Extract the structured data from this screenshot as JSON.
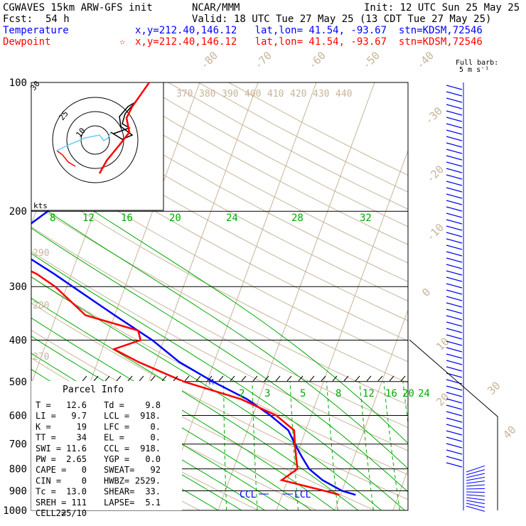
{
  "header": {
    "model": "CGWAVES 15km ARW-GFS init",
    "org": "NCAR/MMM",
    "init": "Init: 12 UTC Sun 25 May 25",
    "fcst_label": "Fcst:",
    "fcst_value": "54 h",
    "valid": "Valid: 18 UTC Tue 27 May 25 (13 CDT Tue 27 May 25)",
    "temp_label": "Temperature",
    "temp_loc": "x,y=212.40,146.12   lat,lon= 41.54, -93.67  stn=KDSM,72546",
    "dew_label": "Dewpoint",
    "dew_star": "☆",
    "dew_loc": "x,y=212.40,146.12   lat,lon= 41.54, -93.67  stn=KDSM,72546",
    "barb_note_1": "Full barb:",
    "barb_note_2": "5 m s⁻¹"
  },
  "hodograph": {
    "units_label": "kts",
    "ring_labels": [
      "10",
      "25",
      "30"
    ]
  },
  "colors": {
    "temperature": "#0000ff",
    "dewpoint": "#ff0000",
    "mixing_ratio": "#00aa00",
    "adiabat": "#c8b49a",
    "isobar": "#000000"
  },
  "parcel_info": {
    "title": "Parcel Info",
    "rows": [
      [
        "T  =",
        "12.6",
        "Td =",
        "9.8"
      ],
      [
        "LI =",
        "9.7",
        "LCL =",
        "918."
      ],
      [
        "K  =",
        "19",
        "LFC =",
        "0."
      ],
      [
        "TT =",
        "34",
        "EL  =",
        "0."
      ],
      [
        "SWI =",
        "11.6",
        "CCL =",
        "918."
      ],
      [
        "PW =",
        "2.65",
        "YGP =",
        "0.0"
      ],
      [
        "CAPE =",
        "0",
        "SWEAT=",
        "92"
      ],
      [
        "CIN =",
        "0",
        "HWBZ=",
        "2529."
      ],
      [
        "Tc =",
        "13.0",
        "SHEAR=",
        "33."
      ],
      [
        "SREH =",
        "111",
        "LAPSE=",
        "5.1"
      ],
      [
        "CELL =",
        "225/10",
        "",
        ""
      ]
    ]
  },
  "level_markers": {
    "ccl": "CCL",
    "lcl": "LCL",
    "m": "M"
  },
  "chart_data": {
    "type": "line",
    "title": "CGWAVES 15km ARW-GFS init",
    "xlabel": "",
    "ylabel": "",
    "pressure_ticks": [
      100,
      200,
      300,
      400,
      500,
      600,
      700,
      800,
      900,
      1000
    ],
    "isotherm_labels_top": [
      "-80",
      "-70",
      "-60",
      "-50",
      "-40"
    ],
    "isotherm_labels_right": [
      "-30",
      "-20",
      "-10",
      "0",
      "10",
      "20",
      "30",
      "40"
    ],
    "theta_labels": [
      "370",
      "380",
      "390",
      "400",
      "410",
      "420",
      "430",
      "440"
    ],
    "theta_labels_left": [
      "290",
      "280",
      "270"
    ],
    "mixing_ratio_labels_upper": [
      "8",
      "12",
      "16",
      "20",
      "24",
      "28",
      "32"
    ],
    "mixing_ratio_labels_lower": [
      "2",
      "3",
      "5",
      "8",
      "12",
      "16",
      "20",
      "24"
    ],
    "series": [
      {
        "name": "Temperature",
        "color": "#0000ff",
        "points": [
          [
            100,
            -56
          ],
          [
            120,
            -57
          ],
          [
            150,
            -57
          ],
          [
            180,
            -56
          ],
          [
            200,
            -58
          ],
          [
            220,
            -61
          ],
          [
            250,
            -60
          ],
          [
            280,
            -53
          ],
          [
            300,
            -49
          ],
          [
            350,
            -40
          ],
          [
            400,
            -32
          ],
          [
            450,
            -26
          ],
          [
            500,
            -19
          ],
          [
            550,
            -12
          ],
          [
            600,
            -7
          ],
          [
            650,
            -3
          ],
          [
            700,
            -1
          ],
          [
            750,
            1
          ],
          [
            800,
            3
          ],
          [
            850,
            6
          ],
          [
            900,
            10
          ],
          [
            920,
            12.6
          ]
        ]
      },
      {
        "name": "Dewpoint",
        "color": "#ff0000",
        "points": [
          [
            100,
            -73
          ],
          [
            120,
            -76
          ],
          [
            150,
            -74
          ],
          [
            180,
            -78
          ],
          [
            200,
            -74
          ],
          [
            220,
            -71
          ],
          [
            250,
            -65
          ],
          [
            280,
            -56
          ],
          [
            300,
            -52
          ],
          [
            350,
            -45
          ],
          [
            380,
            -35
          ],
          [
            400,
            -34
          ],
          [
            420,
            -38
          ],
          [
            450,
            -33
          ],
          [
            500,
            -24
          ],
          [
            550,
            -13
          ],
          [
            600,
            -6
          ],
          [
            650,
            -2
          ],
          [
            700,
            -1
          ],
          [
            750,
            0
          ],
          [
            800,
            1
          ],
          [
            850,
            -1
          ],
          [
            900,
            7
          ],
          [
            920,
            9.8
          ]
        ]
      }
    ],
    "wind_profile": [
      {
        "p": 100,
        "dir": 270,
        "spd": 35
      },
      {
        "p": 150,
        "dir": 265,
        "spd": 45
      },
      {
        "p": 200,
        "dir": 260,
        "spd": 50
      },
      {
        "p": 250,
        "dir": 260,
        "spd": 55
      },
      {
        "p": 300,
        "dir": 255,
        "spd": 50
      },
      {
        "p": 400,
        "dir": 255,
        "spd": 40
      },
      {
        "p": 500,
        "dir": 250,
        "spd": 30
      },
      {
        "p": 600,
        "dir": 240,
        "spd": 25
      },
      {
        "p": 700,
        "dir": 230,
        "spd": 20
      },
      {
        "p": 800,
        "dir": 210,
        "spd": 15
      },
      {
        "p": 850,
        "dir": 190,
        "spd": 15
      },
      {
        "p": 900,
        "dir": 170,
        "spd": 12
      }
    ]
  }
}
